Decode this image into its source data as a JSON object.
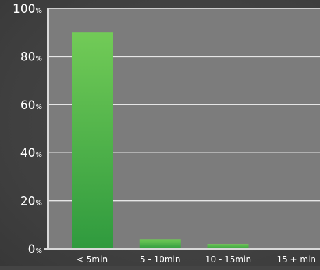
{
  "chart_data": {
    "type": "bar",
    "categories": [
      "< 5min",
      "5 - 10min",
      "10 - 15min",
      "15 + min"
    ],
    "values": [
      90,
      4,
      2,
      0.5
    ],
    "ylim": [
      0,
      100
    ],
    "yticks": [
      0,
      20,
      40,
      60,
      80,
      100
    ],
    "ytick_labels": [
      "0%",
      "20%",
      "40%",
      "60%",
      "80%",
      "100%"
    ],
    "grid": true,
    "legend": "none",
    "title": "",
    "xlabel": "",
    "ylabel": ""
  },
  "colors": {
    "plot_background": "#7c7c7c",
    "page_background": "#444444",
    "gridline": "#e6e6e6",
    "axis": "#d9d9d9",
    "bar_top": "#72cb57",
    "bar_bottom": "#2f9a3e",
    "text": "#ffffff"
  }
}
